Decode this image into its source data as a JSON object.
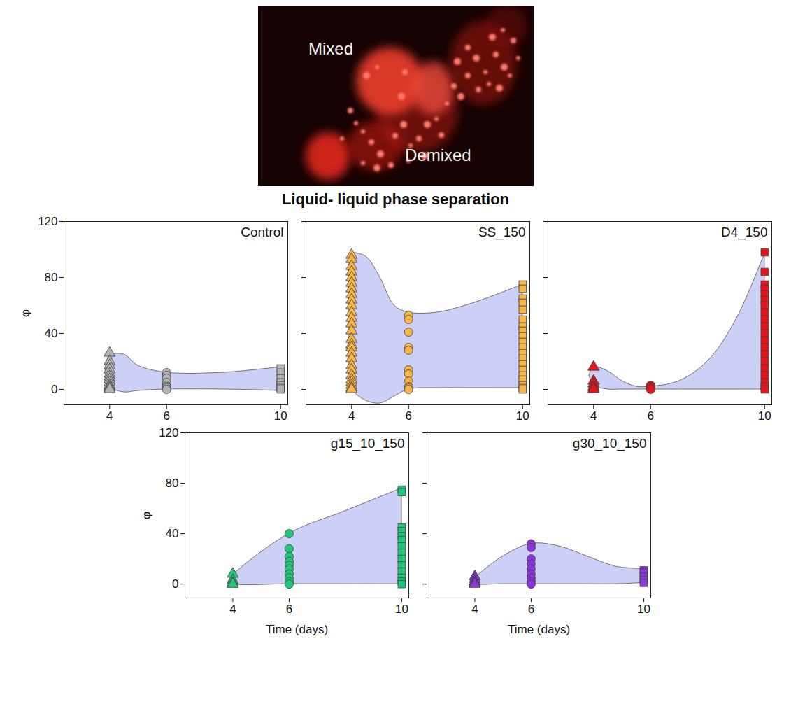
{
  "figure": {
    "title": "Liquid- liquid phase separation",
    "image_labels": [
      "Mixed",
      "Demixed"
    ]
  },
  "chart_data": [
    {
      "type": "scatter",
      "title": "Control",
      "ylabel": "φ",
      "color": "#b3b3b3",
      "xlim": [
        2.4,
        10.25
      ],
      "ylim": [
        -11,
        120
      ],
      "xticks": [
        4,
        6,
        10
      ],
      "yticks": [
        0,
        40,
        80,
        120
      ],
      "series": [
        {
          "x": 4,
          "marker": "triangle",
          "values": [
            26,
            20,
            17,
            14,
            11,
            9,
            7,
            5,
            3,
            2,
            1,
            0
          ]
        },
        {
          "x": 6,
          "marker": "circle",
          "values": [
            12,
            10,
            8,
            5,
            3,
            2,
            1,
            0
          ]
        },
        {
          "x": 10,
          "marker": "square",
          "values": [
            15,
            12,
            8,
            5,
            3,
            1,
            0
          ]
        }
      ],
      "envelope": {
        "x": [
          3.85,
          4,
          4.5,
          5,
          6,
          8,
          10
        ],
        "upper": [
          14,
          24,
          25,
          17,
          12,
          12,
          16
        ],
        "lower": [
          14,
          2,
          -2,
          -1,
          0,
          0,
          -1
        ]
      }
    },
    {
      "type": "scatter",
      "title": "SS_150",
      "color": "#f6b449",
      "tick_labels": "x",
      "xlim": [
        2.4,
        10.25
      ],
      "ylim": [
        -11,
        120
      ],
      "xticks": [
        4,
        6,
        10
      ],
      "yticks": [
        0,
        40,
        80,
        120
      ],
      "series": [
        {
          "x": 4,
          "marker": "triangle",
          "values": [
            96,
            93,
            88,
            84,
            80,
            76,
            72,
            68,
            64,
            60,
            55,
            51,
            47,
            42,
            36,
            32,
            30,
            26,
            22,
            17,
            14,
            10,
            7,
            5,
            3,
            1,
            0
          ]
        },
        {
          "x": 6,
          "marker": "circle",
          "values": [
            53,
            50,
            41,
            30,
            28,
            14,
            11,
            6,
            2,
            1,
            0
          ]
        },
        {
          "x": 10,
          "marker": "square",
          "values": [
            75,
            72,
            65,
            62,
            57,
            50,
            45,
            42,
            38,
            34,
            30,
            26,
            22,
            18,
            14,
            10,
            7,
            3,
            1,
            0
          ]
        }
      ],
      "envelope": {
        "x": [
          3.9,
          4,
          4.5,
          5,
          5.5,
          6,
          7,
          8,
          9,
          10
        ],
        "upper": [
          90,
          97,
          95,
          80,
          60,
          55,
          55,
          60,
          67,
          75
        ],
        "lower": [
          5,
          0,
          -8,
          -10,
          -5,
          0,
          1,
          1,
          1,
          1
        ]
      }
    },
    {
      "type": "scatter",
      "title": "D4_150",
      "color": "#e8141b",
      "tick_labels": "x",
      "xlim": [
        2.4,
        10.25
      ],
      "ylim": [
        -11,
        120
      ],
      "xticks": [
        4,
        6,
        10
      ],
      "yticks": [
        0,
        40,
        80,
        120
      ],
      "series": [
        {
          "x": 4,
          "marker": "triangle",
          "values": [
            16,
            6,
            4,
            2,
            1,
            0
          ]
        },
        {
          "x": 6,
          "marker": "circle",
          "values": [
            3,
            2,
            1,
            0
          ]
        },
        {
          "x": 10,
          "marker": "square",
          "values": [
            98,
            84,
            75,
            72,
            68,
            64,
            60,
            55,
            50,
            45,
            40,
            35,
            30,
            25,
            20,
            15,
            10,
            5,
            2,
            0
          ]
        }
      ],
      "envelope": {
        "x": [
          3.85,
          4,
          4.5,
          5,
          5.5,
          6,
          7,
          8,
          9,
          10
        ],
        "upper": [
          10,
          16,
          13,
          6,
          2,
          2,
          6,
          20,
          50,
          97
        ],
        "lower": [
          10,
          3,
          0,
          0,
          0,
          0,
          0,
          0,
          0,
          0
        ]
      }
    },
    {
      "type": "scatter",
      "title": "g15_10_150",
      "xlabel": "Time (days)",
      "ylabel": "φ",
      "color": "#22c77b",
      "xlim": [
        2.3,
        10.25
      ],
      "ylim": [
        -11,
        120
      ],
      "xticks": [
        4,
        6,
        10
      ],
      "yticks": [
        0,
        40,
        80,
        120
      ],
      "series": [
        {
          "x": 4,
          "marker": "triangle",
          "values": [
            8,
            3,
            1,
            0
          ]
        },
        {
          "x": 6,
          "marker": "circle",
          "values": [
            40,
            28,
            22,
            18,
            15,
            12,
            8,
            5,
            2,
            0
          ]
        },
        {
          "x": 10,
          "marker": "square",
          "values": [
            75,
            73,
            45,
            42,
            38,
            35,
            30,
            25,
            20,
            15,
            10,
            5,
            2,
            0
          ]
        }
      ],
      "envelope": {
        "x": [
          3.85,
          4,
          6,
          8,
          10
        ],
        "upper": [
          2,
          7,
          40,
          58,
          76
        ],
        "lower": [
          2,
          0,
          0,
          0,
          0
        ]
      }
    },
    {
      "type": "scatter",
      "title": "g30_10_150",
      "xlabel": "Time (days)",
      "color": "#8a36d8",
      "tick_labels": "x",
      "xlim": [
        2.3,
        10.25
      ],
      "ylim": [
        -11,
        120
      ],
      "xticks": [
        4,
        6,
        10
      ],
      "yticks": [
        0,
        40,
        80,
        120
      ],
      "series": [
        {
          "x": 4,
          "marker": "triangle",
          "values": [
            6,
            4,
            2,
            1,
            0
          ]
        },
        {
          "x": 6,
          "marker": "circle",
          "values": [
            32,
            29,
            20,
            16,
            12,
            8,
            5,
            2,
            0
          ]
        },
        {
          "x": 10,
          "marker": "square",
          "values": [
            11,
            9,
            6,
            3,
            1
          ]
        }
      ],
      "envelope": {
        "x": [
          3.85,
          4,
          5,
          6,
          7,
          8,
          9,
          10
        ],
        "upper": [
          2,
          5,
          22,
          32,
          30,
          22,
          14,
          12
        ],
        "lower": [
          2,
          0,
          0,
          0,
          0,
          0,
          0,
          1
        ]
      }
    }
  ]
}
